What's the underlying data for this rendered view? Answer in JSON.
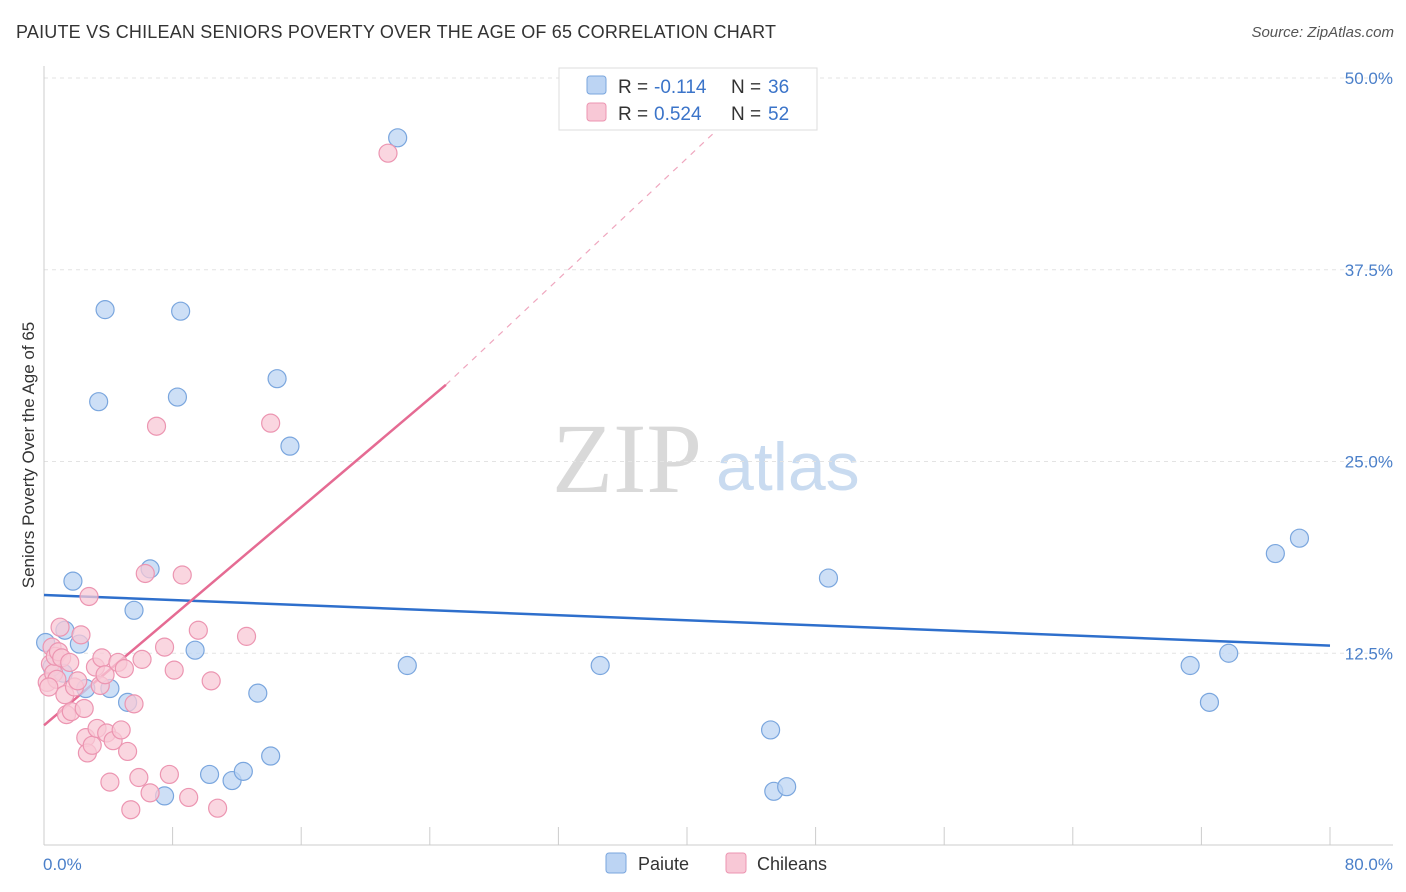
{
  "title": "PAIUTE VS CHILEAN SENIORS POVERTY OVER THE AGE OF 65 CORRELATION CHART",
  "source": "Source: ZipAtlas.com",
  "watermark": {
    "zip": "ZIP",
    "atlas": "atlas"
  },
  "colors": {
    "paiute_fill": "#bcd4f3",
    "paiute_stroke": "#7aa6de",
    "paiute_line": "#2e6fcc",
    "chilean_fill": "#f8c8d6",
    "chilean_stroke": "#ec95b1",
    "chilean_line": "#e56b93"
  },
  "legend": {
    "rows": [
      {
        "r_label": "R = ",
        "r_value": "-0.114",
        "n_label": "N = ",
        "n_value": "36"
      },
      {
        "r_label": "R = ",
        "r_value": "0.524",
        "n_label": "N = ",
        "n_value": "52"
      }
    ]
  },
  "bottom_legend": [
    {
      "label": "Paiute"
    },
    {
      "label": "Chileans"
    }
  ],
  "chart_data": {
    "type": "scatter",
    "xlabel": "",
    "ylabel": "Seniors Poverty Over the Age of 65",
    "xlim": [
      0,
      80
    ],
    "ylim": [
      0,
      50
    ],
    "x_tick_labels": [
      "0.0%",
      "80.0%"
    ],
    "y_ticks": [
      {
        "value": 12.5,
        "label": "12.5%"
      },
      {
        "value": 25.0,
        "label": "25.0%"
      },
      {
        "value": 37.5,
        "label": "37.5%"
      },
      {
        "value": 50.0,
        "label": "50.0%"
      }
    ],
    "series": [
      {
        "name": "Paiute",
        "points": [
          [
            0.1,
            13.2
          ],
          [
            1.2,
            11.2
          ],
          [
            1.3,
            14.0
          ],
          [
            1.8,
            17.2
          ],
          [
            2.2,
            13.1
          ],
          [
            2.6,
            10.2
          ],
          [
            3.4,
            28.9
          ],
          [
            3.8,
            34.9
          ],
          [
            4.1,
            10.2
          ],
          [
            5.2,
            9.3
          ],
          [
            5.6,
            15.3
          ],
          [
            6.6,
            18.0
          ],
          [
            7.5,
            3.2
          ],
          [
            8.3,
            29.2
          ],
          [
            8.5,
            34.8
          ],
          [
            9.4,
            12.7
          ],
          [
            10.3,
            4.6
          ],
          [
            11.7,
            4.2
          ],
          [
            12.4,
            4.8
          ],
          [
            13.3,
            9.9
          ],
          [
            14.1,
            5.8
          ],
          [
            14.5,
            30.4
          ],
          [
            15.3,
            26.0
          ],
          [
            22.0,
            46.1
          ],
          [
            22.6,
            11.7
          ],
          [
            34.6,
            11.7
          ],
          [
            45.2,
            7.5
          ],
          [
            45.4,
            3.5
          ],
          [
            46.2,
            3.8
          ],
          [
            48.8,
            17.4
          ],
          [
            71.3,
            11.7
          ],
          [
            72.5,
            9.3
          ],
          [
            73.7,
            12.5
          ],
          [
            76.6,
            19.0
          ],
          [
            78.1,
            20.0
          ],
          [
            0.5,
            11.6
          ]
        ],
        "trend": {
          "x0": 0,
          "y0": 16.3,
          "x1": 80,
          "y1": 13.0
        }
      },
      {
        "name": "Chileans",
        "points": [
          [
            0.2,
            10.6
          ],
          [
            0.4,
            11.8
          ],
          [
            0.5,
            12.9
          ],
          [
            0.6,
            11.2
          ],
          [
            0.7,
            12.3
          ],
          [
            0.8,
            10.8
          ],
          [
            0.9,
            12.6
          ],
          [
            1.0,
            14.2
          ],
          [
            1.1,
            12.2
          ],
          [
            1.3,
            9.8
          ],
          [
            1.4,
            8.5
          ],
          [
            1.6,
            11.9
          ],
          [
            1.7,
            8.7
          ],
          [
            1.9,
            10.3
          ],
          [
            2.1,
            10.7
          ],
          [
            2.3,
            13.7
          ],
          [
            2.5,
            8.9
          ],
          [
            2.6,
            7.0
          ],
          [
            2.7,
            6.0
          ],
          [
            2.8,
            16.2
          ],
          [
            3.0,
            6.5
          ],
          [
            3.2,
            11.6
          ],
          [
            3.3,
            7.6
          ],
          [
            3.5,
            10.4
          ],
          [
            3.6,
            12.2
          ],
          [
            3.8,
            11.1
          ],
          [
            3.9,
            7.3
          ],
          [
            4.1,
            4.1
          ],
          [
            4.3,
            6.8
          ],
          [
            4.6,
            11.9
          ],
          [
            4.8,
            7.5
          ],
          [
            5.0,
            11.5
          ],
          [
            5.2,
            6.1
          ],
          [
            5.4,
            2.3
          ],
          [
            5.6,
            9.2
          ],
          [
            5.9,
            4.4
          ],
          [
            6.1,
            12.1
          ],
          [
            6.3,
            17.7
          ],
          [
            6.6,
            3.4
          ],
          [
            7.0,
            27.3
          ],
          [
            7.5,
            12.9
          ],
          [
            7.8,
            4.6
          ],
          [
            8.1,
            11.4
          ],
          [
            8.6,
            17.6
          ],
          [
            9.0,
            3.1
          ],
          [
            9.6,
            14.0
          ],
          [
            10.4,
            10.7
          ],
          [
            10.8,
            2.4
          ],
          [
            12.6,
            13.6
          ],
          [
            14.1,
            27.5
          ],
          [
            21.4,
            45.1
          ],
          [
            0.3,
            10.3
          ]
        ],
        "trend": {
          "x0": 0,
          "y0": 7.8,
          "x1": 25.0,
          "y1": 30.0
        },
        "trend_extension": {
          "x0": 25.0,
          "y0": 30.0,
          "x1": 45.0,
          "y1": 49.7
        }
      }
    ]
  }
}
